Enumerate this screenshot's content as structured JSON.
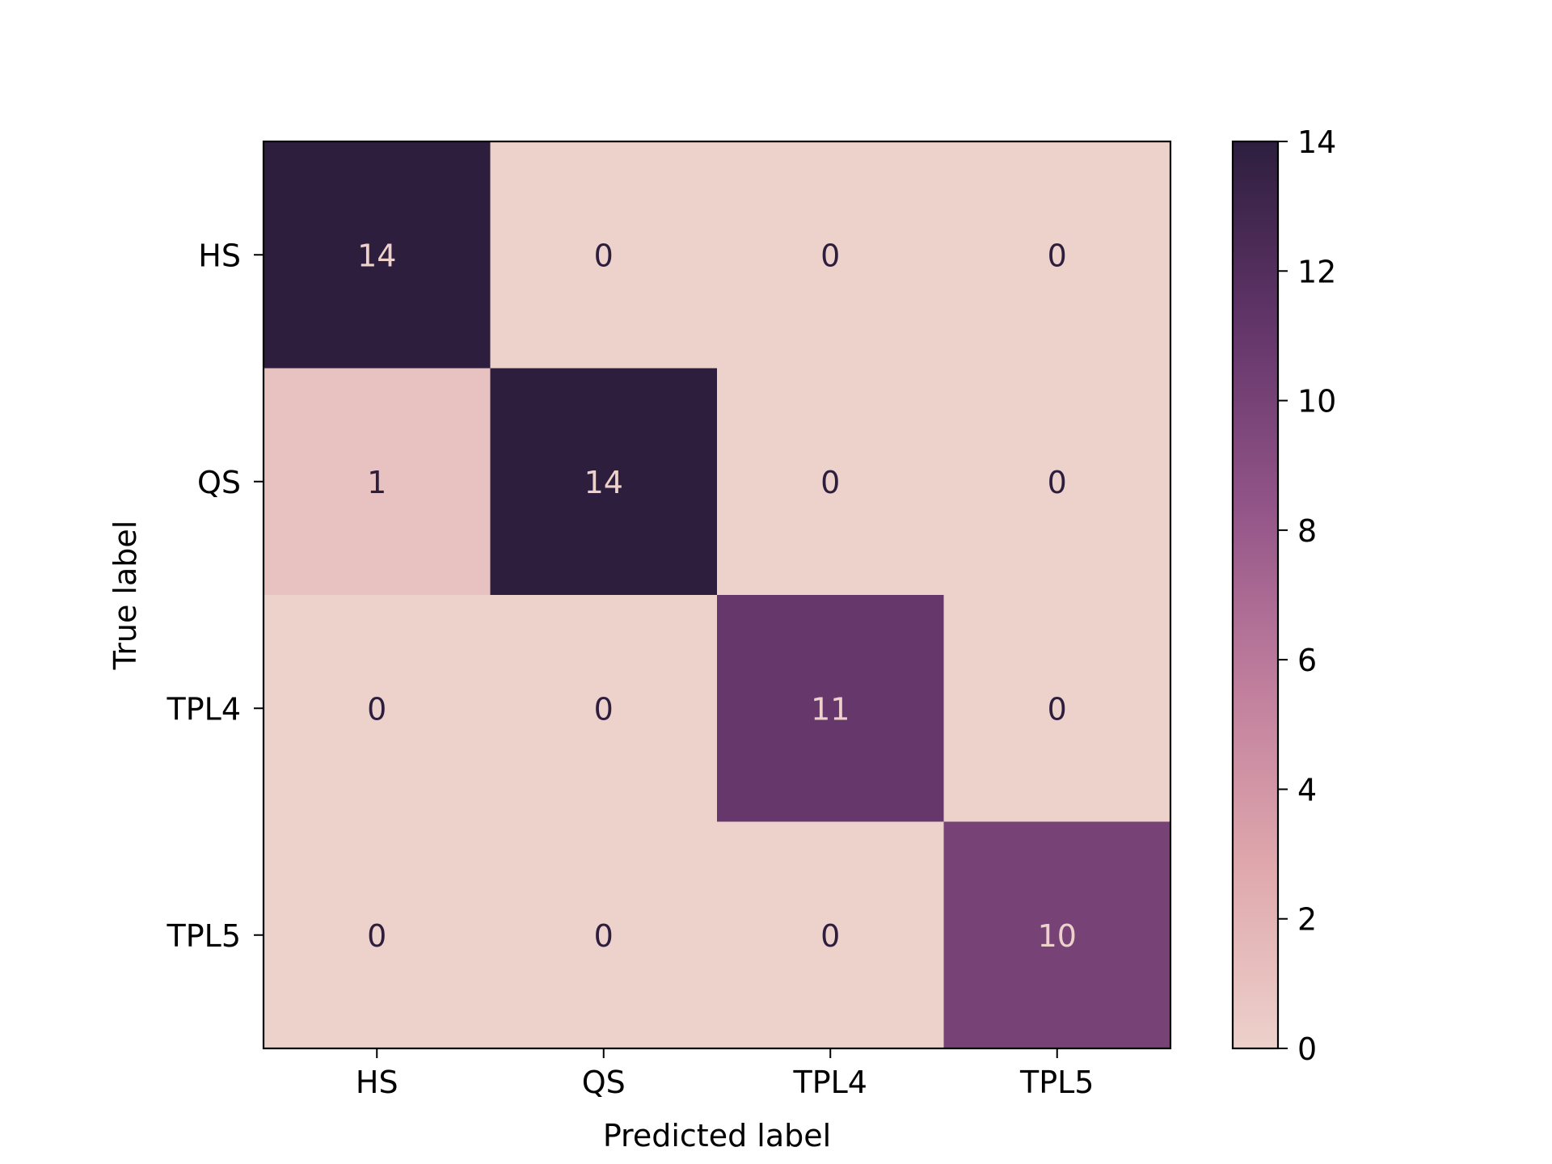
{
  "chart_data": {
    "type": "heatmap",
    "title": "",
    "xlabel": "Predicted label",
    "ylabel": "True label",
    "x_categories": [
      "HS",
      "QS",
      "TPL4",
      "TPL5"
    ],
    "y_categories": [
      "HS",
      "QS",
      "TPL4",
      "TPL5"
    ],
    "matrix": [
      [
        14,
        0,
        0,
        0
      ],
      [
        1,
        14,
        0,
        0
      ],
      [
        0,
        0,
        11,
        0
      ],
      [
        0,
        0,
        0,
        10
      ]
    ],
    "colorbar": {
      "range": [
        0,
        14
      ],
      "ticks": [
        "0",
        "2",
        "4",
        "6",
        "8",
        "10",
        "12",
        "14"
      ],
      "color_stops": [
        "#edd1cb",
        "#dfa8ac",
        "#c07e9d",
        "#925488",
        "#623569",
        "#2d1e3e"
      ]
    },
    "cell_text_colors": {
      "dark_bg": "#edd1cb",
      "light_bg": "#2d1e3e"
    }
  }
}
